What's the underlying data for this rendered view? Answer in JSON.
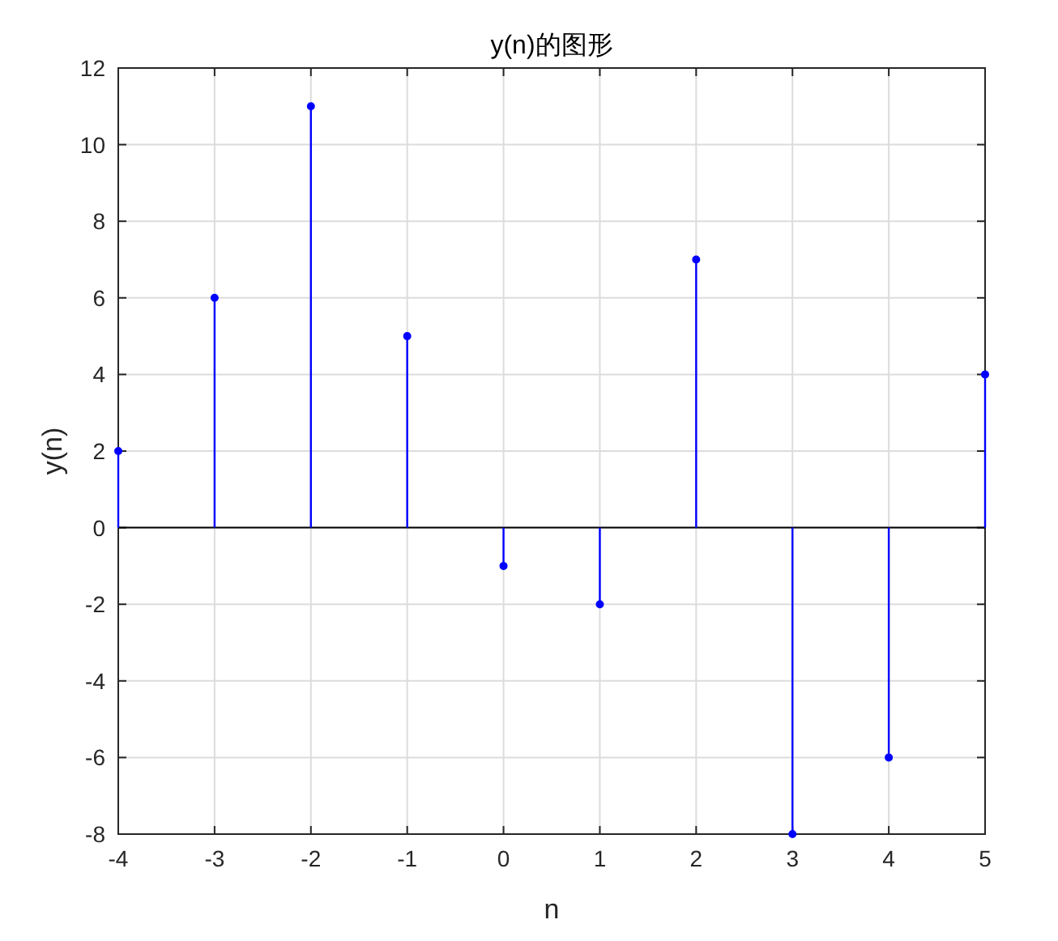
{
  "chart_data": {
    "type": "lollipop",
    "title": "y(n)的图形",
    "xlabel": "n",
    "ylabel": "y(n)",
    "x": [
      -4,
      -3,
      -2,
      -1,
      0,
      1,
      2,
      3,
      4,
      5
    ],
    "values": [
      2,
      6,
      11,
      5,
      -1,
      -2,
      7,
      -8,
      -6,
      4
    ],
    "color": "#0000ff",
    "marker": "circle",
    "line_style": "solid",
    "xlim": [
      -4,
      5
    ],
    "xticks": [
      -4,
      -3,
      -2,
      -1,
      0,
      1,
      2,
      3,
      4,
      5
    ],
    "ylim": [
      -8,
      12
    ],
    "yticks": [
      -8,
      -6,
      -4,
      -2,
      0,
      2,
      4,
      6,
      8,
      10,
      12
    ],
    "grid": true
  }
}
